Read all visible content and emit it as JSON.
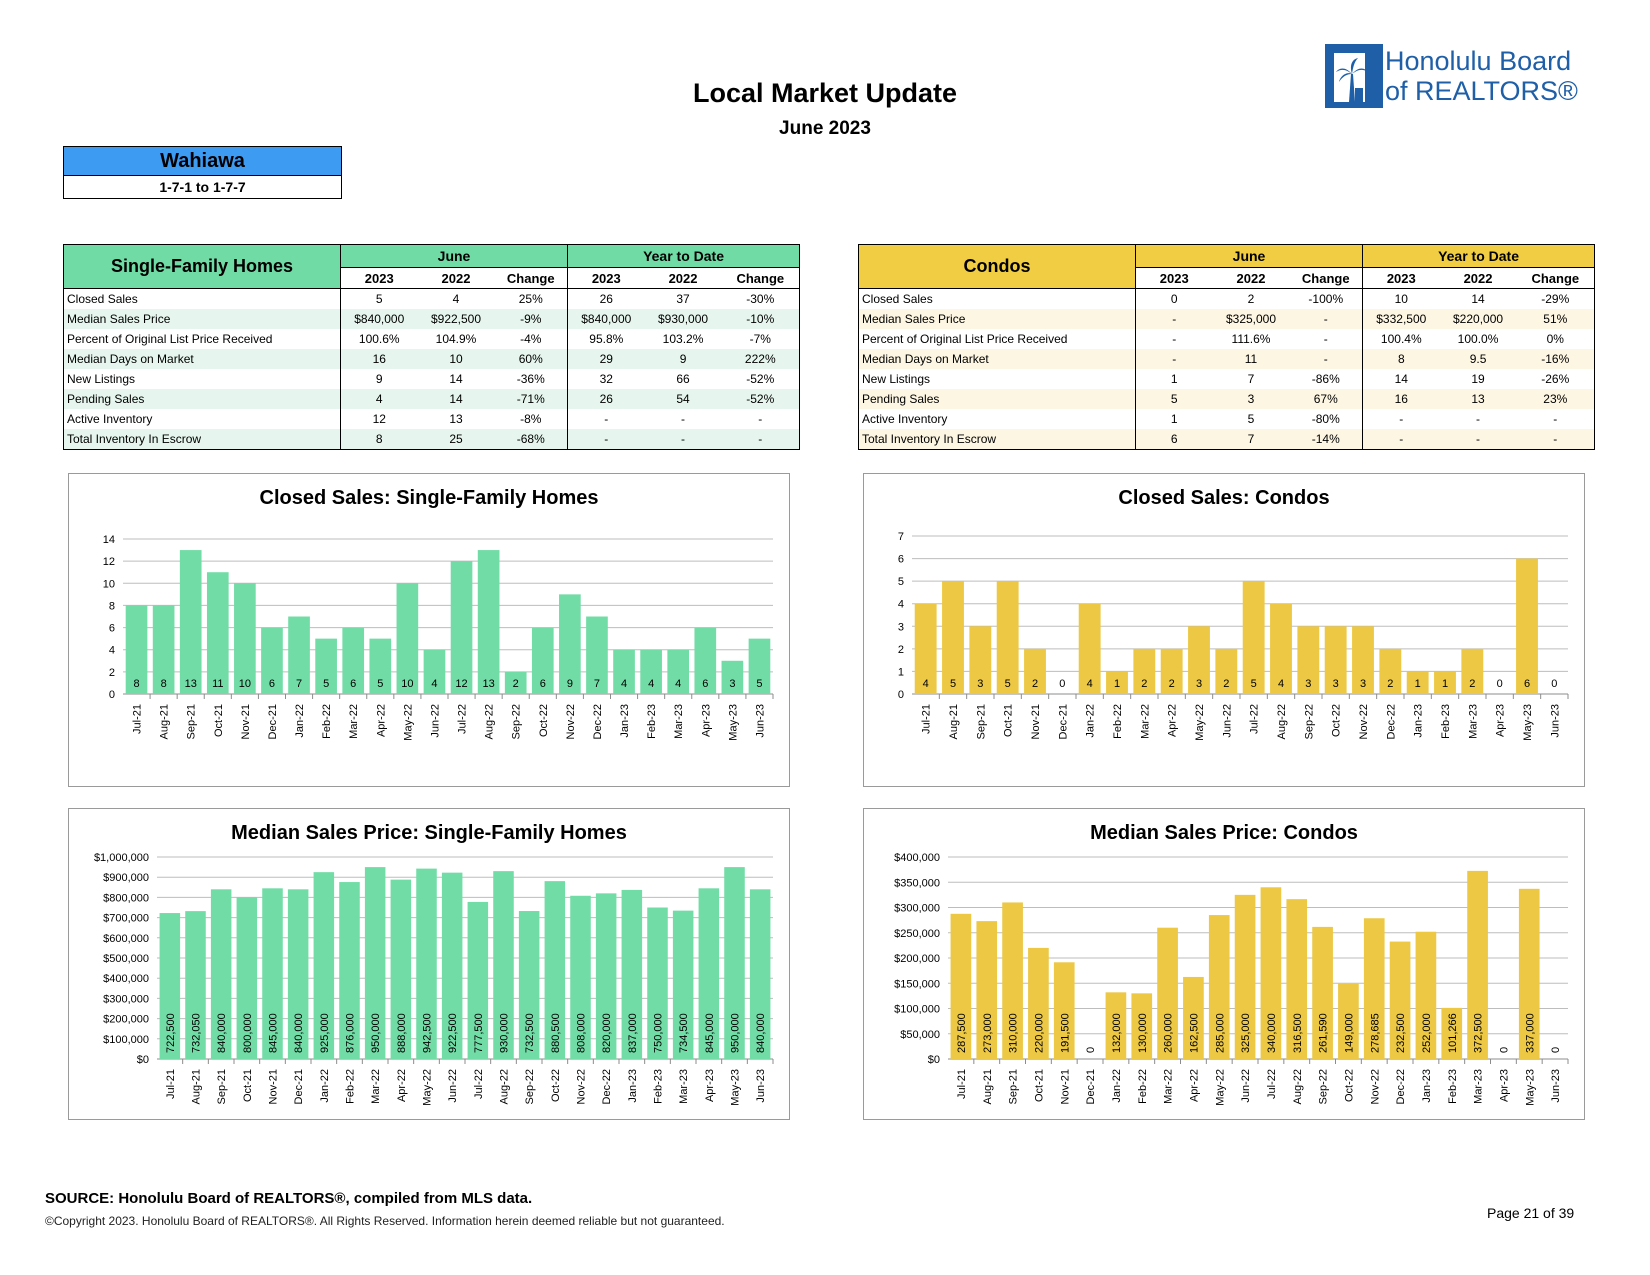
{
  "header": {
    "title": "Local Market Update",
    "subtitle": "June 2023"
  },
  "logo": {
    "line1": "Honolulu Board",
    "line2": "of REALTORS®"
  },
  "area": {
    "name": "Wahiawa",
    "range": "1-7-1 to 1-7-7"
  },
  "sfh_table": {
    "title": "Single-Family Homes",
    "group1": "June",
    "group2": "Year to Date",
    "cols": [
      "2023",
      "2022",
      "Change",
      "2023",
      "2022",
      "Change"
    ],
    "rows": [
      [
        "Closed Sales",
        "5",
        "4",
        "25%",
        "26",
        "37",
        "-30%"
      ],
      [
        "Median Sales Price",
        "$840,000",
        "$922,500",
        "-9%",
        "$840,000",
        "$930,000",
        "-10%"
      ],
      [
        "Percent of Original List Price Received",
        "100.6%",
        "104.9%",
        "-4%",
        "95.8%",
        "103.2%",
        "-7%"
      ],
      [
        "Median Days on Market",
        "16",
        "10",
        "60%",
        "29",
        "9",
        "222%"
      ],
      [
        "New Listings",
        "9",
        "14",
        "-36%",
        "32",
        "66",
        "-52%"
      ],
      [
        "Pending Sales",
        "4",
        "14",
        "-71%",
        "26",
        "54",
        "-52%"
      ],
      [
        "Active Inventory",
        "12",
        "13",
        "-8%",
        "-",
        "-",
        "-"
      ],
      [
        "Total Inventory In Escrow",
        "8",
        "25",
        "-68%",
        "-",
        "-",
        "-"
      ]
    ]
  },
  "condo_table": {
    "title": "Condos",
    "group1": "June",
    "group2": "Year to Date",
    "cols": [
      "2023",
      "2022",
      "Change",
      "2023",
      "2022",
      "Change"
    ],
    "rows": [
      [
        "Closed Sales",
        "0",
        "2",
        "-100%",
        "10",
        "14",
        "-29%"
      ],
      [
        "Median Sales Price",
        "-",
        "$325,000",
        "-",
        "$332,500",
        "$220,000",
        "51%"
      ],
      [
        "Percent of Original List Price Received",
        "-",
        "111.6%",
        "-",
        "100.4%",
        "100.0%",
        "0%"
      ],
      [
        "Median Days on Market",
        "-",
        "11",
        "-",
        "8",
        "9.5",
        "-16%"
      ],
      [
        "New Listings",
        "1",
        "7",
        "-86%",
        "14",
        "19",
        "-26%"
      ],
      [
        "Pending Sales",
        "5",
        "3",
        "67%",
        "16",
        "13",
        "23%"
      ],
      [
        "Active Inventory",
        "1",
        "5",
        "-80%",
        "-",
        "-",
        "-"
      ],
      [
        "Total Inventory In Escrow",
        "6",
        "7",
        "-14%",
        "-",
        "-",
        "-"
      ]
    ]
  },
  "colors": {
    "sfh": "#72dca6",
    "condo": "#ecc844",
    "area_header": "#3d9bf2",
    "logo": "#1f5fa8"
  },
  "chart_data": [
    {
      "id": "closed-sfh",
      "type": "bar",
      "title": "Closed Sales: Single-Family Homes",
      "categories": [
        "Jul-21",
        "Aug-21",
        "Sep-21",
        "Oct-21",
        "Nov-21",
        "Dec-21",
        "Jan-22",
        "Feb-22",
        "Mar-22",
        "Apr-22",
        "May-22",
        "Jun-22",
        "Jul-22",
        "Aug-22",
        "Sep-22",
        "Oct-22",
        "Nov-22",
        "Dec-22",
        "Jan-23",
        "Feb-23",
        "Mar-23",
        "Apr-23",
        "May-23",
        "Jun-23"
      ],
      "values": [
        8,
        8,
        13,
        11,
        10,
        6,
        7,
        5,
        6,
        5,
        10,
        4,
        12,
        13,
        2,
        6,
        9,
        7,
        4,
        4,
        4,
        6,
        3,
        5
      ],
      "labels": [
        "8",
        "8",
        "13",
        "11",
        "10",
        "6",
        "7",
        "5",
        "6",
        "5",
        "10",
        "4",
        "12",
        "13",
        "2",
        "6",
        "9",
        "7",
        "4",
        "4",
        "4",
        "6",
        "3",
        "5"
      ],
      "ylim": [
        0,
        14
      ],
      "yticks": [
        "0",
        "2",
        "4",
        "6",
        "8",
        "10",
        "12",
        "14"
      ],
      "color": "#72dca6",
      "label_style": "horizontal"
    },
    {
      "id": "closed-condo",
      "type": "bar",
      "title": "Closed Sales: Condos",
      "categories": [
        "Jul-21",
        "Aug-21",
        "Sep-21",
        "Oct-21",
        "Nov-21",
        "Dec-21",
        "Jan-22",
        "Feb-22",
        "Mar-22",
        "Apr-22",
        "May-22",
        "Jun-22",
        "Jul-22",
        "Aug-22",
        "Sep-22",
        "Oct-22",
        "Nov-22",
        "Dec-22",
        "Jan-23",
        "Feb-23",
        "Mar-23",
        "Apr-23",
        "May-23",
        "Jun-23"
      ],
      "values": [
        4,
        5,
        3,
        5,
        2,
        0,
        4,
        1,
        2,
        2,
        3,
        2,
        5,
        4,
        3,
        3,
        3,
        2,
        1,
        1,
        2,
        0,
        6,
        0
      ],
      "labels": [
        "4",
        "5",
        "3",
        "5",
        "2",
        "0",
        "4",
        "1",
        "2",
        "2",
        "3",
        "2",
        "5",
        "4",
        "3",
        "3",
        "3",
        "2",
        "1",
        "1",
        "2",
        "0",
        "6",
        "0"
      ],
      "ylim": [
        0,
        7
      ],
      "yticks": [
        "0",
        "1",
        "2",
        "3",
        "4",
        "5",
        "6",
        "7"
      ],
      "color": "#ecc844",
      "label_style": "horizontal"
    },
    {
      "id": "price-sfh",
      "type": "bar",
      "title": "Median Sales Price: Single-Family Homes",
      "categories": [
        "Jul-21",
        "Aug-21",
        "Sep-21",
        "Oct-21",
        "Nov-21",
        "Dec-21",
        "Jan-22",
        "Feb-22",
        "Mar-22",
        "Apr-22",
        "May-22",
        "Jun-22",
        "Jul-22",
        "Aug-22",
        "Sep-22",
        "Oct-22",
        "Nov-22",
        "Dec-22",
        "Jan-23",
        "Feb-23",
        "Mar-23",
        "Apr-23",
        "May-23",
        "Jun-23"
      ],
      "values": [
        722500,
        732050,
        840000,
        800000,
        845000,
        840000,
        925000,
        876000,
        950000,
        888000,
        942500,
        922500,
        777500,
        930000,
        732500,
        880500,
        808000,
        820000,
        837000,
        750000,
        734500,
        845000,
        950000,
        840000
      ],
      "labels": [
        "722,500",
        "732,050",
        "840,000",
        "800,000",
        "845,000",
        "840,000",
        "925,000",
        "876,000",
        "950,000",
        "888,000",
        "942,500",
        "922,500",
        "777,500",
        "930,000",
        "732,500",
        "880,500",
        "808,000",
        "820,000",
        "837,000",
        "750,000",
        "734,500",
        "845,000",
        "950,000",
        "840,000"
      ],
      "ylim": [
        0,
        1000000
      ],
      "yticks": [
        "$0",
        "$100,000",
        "$200,000",
        "$300,000",
        "$400,000",
        "$500,000",
        "$600,000",
        "$700,000",
        "$800,000",
        "$900,000",
        "$1,000,000"
      ],
      "color": "#72dca6",
      "label_style": "vertical"
    },
    {
      "id": "price-condo",
      "type": "bar",
      "title": "Median Sales Price: Condos",
      "categories": [
        "Jul-21",
        "Aug-21",
        "Sep-21",
        "Oct-21",
        "Nov-21",
        "Dec-21",
        "Jan-22",
        "Feb-22",
        "Mar-22",
        "Apr-22",
        "May-22",
        "Jun-22",
        "Jul-22",
        "Aug-22",
        "Sep-22",
        "Oct-22",
        "Nov-22",
        "Dec-22",
        "Jan-23",
        "Feb-23",
        "Mar-23",
        "Apr-23",
        "May-23",
        "Jun-23"
      ],
      "values": [
        287500,
        273000,
        310000,
        220000,
        191500,
        0,
        132000,
        130000,
        260000,
        162500,
        285000,
        325000,
        340000,
        316500,
        261590,
        149000,
        278685,
        232500,
        252000,
        101266,
        372500,
        0,
        337000,
        0
      ],
      "labels": [
        "287,500",
        "273,000",
        "310,000",
        "220,000",
        "191,500",
        "0",
        "132,000",
        "130,000",
        "260,000",
        "162,500",
        "285,000",
        "325,000",
        "340,000",
        "316,500",
        "261,590",
        "149,000",
        "278,685",
        "232,500",
        "252,000",
        "101,266",
        "372,500",
        "0",
        "337,000",
        "0"
      ],
      "ylim": [
        0,
        400000
      ],
      "yticks": [
        "$0",
        "$50,000",
        "$100,000",
        "$150,000",
        "$200,000",
        "$250,000",
        "$300,000",
        "$350,000",
        "$400,000"
      ],
      "color": "#ecc844",
      "label_style": "vertical"
    }
  ],
  "footer": {
    "source": "SOURCE: Honolulu Board of REALTORS®, compiled from MLS data.",
    "copyright": "©Copyright 2023. Honolulu Board of REALTORS®. All Rights Reserved. Information herein deemed reliable but not guaranteed.",
    "page": "Page 21 of 39"
  }
}
